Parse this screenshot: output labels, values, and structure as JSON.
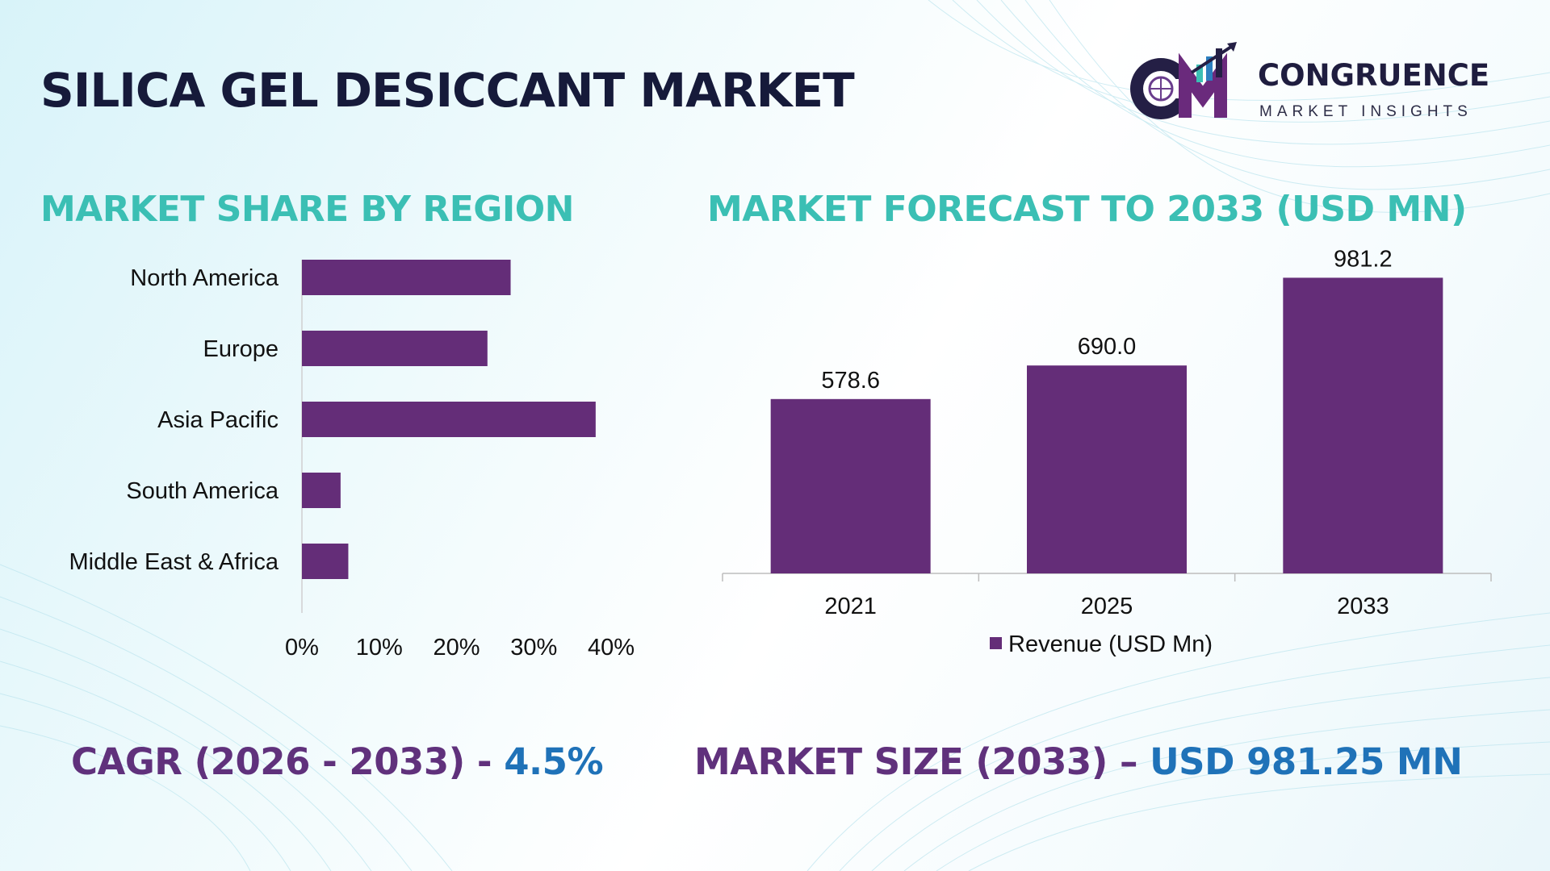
{
  "page": {
    "title": "SILICA GEL DESICCANT MARKET"
  },
  "logo": {
    "name": "CONGRUENCE",
    "tagline": "MARKET INSIGHTS",
    "initials": "CM"
  },
  "sections": {
    "region_title": "MARKET SHARE BY REGION",
    "forecast_title": "MARKET FORECAST TO 2033 (USD MN)"
  },
  "colors": {
    "bar": "#642d78",
    "title": "#161a3a",
    "section_title": "#3bbfb4",
    "stat_label": "#60317c",
    "stat_value": "#1f72b8"
  },
  "chart_data": [
    {
      "type": "bar",
      "orientation": "horizontal",
      "categories": [
        "North America",
        "Europe",
        "Asia Pacific",
        "South America",
        "Middle East & Africa"
      ],
      "values": [
        27,
        24,
        38,
        5,
        6
      ],
      "x_ticks": [
        "0%",
        "10%",
        "20%",
        "30%",
        "40%"
      ],
      "xlim": [
        0,
        40
      ],
      "unit": "%",
      "grid": false
    },
    {
      "type": "bar",
      "categories": [
        "2021",
        "2025",
        "2033"
      ],
      "series": [
        {
          "name": "Revenue (USD Mn)",
          "values": [
            578.6,
            690.0,
            981.2
          ]
        }
      ],
      "data_labels": [
        "578.6",
        "690.0",
        "981.2"
      ],
      "ylim": [
        0,
        1100
      ],
      "legend": "bottom",
      "grid": false
    }
  ],
  "stats": {
    "cagr_label": "CAGR (2026 - 2033) - ",
    "cagr_value": "4.5%",
    "size_label": "MARKET SIZE (2033) – ",
    "size_value": "USD 981.25 MN"
  }
}
